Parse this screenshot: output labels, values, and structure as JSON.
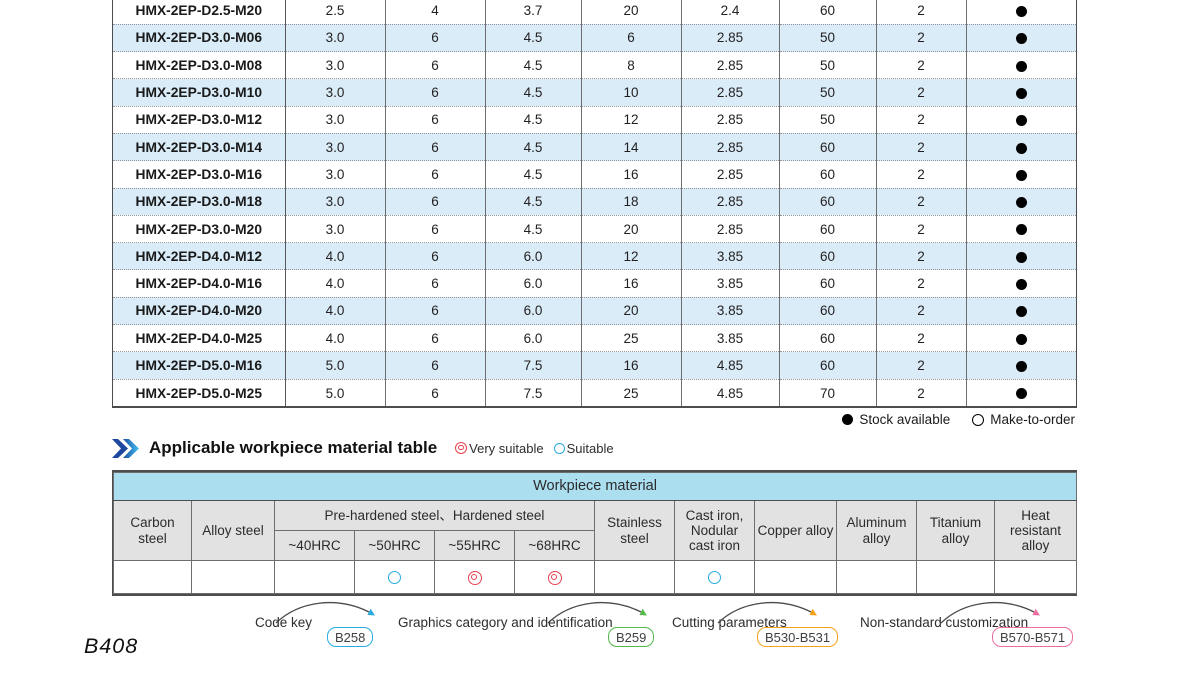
{
  "page": {
    "page_number": "B408"
  },
  "spec_table": {
    "rows": [
      {
        "model": "HMX-2EP-D2.5-M20",
        "values": [
          "2.5",
          "4",
          "3.7",
          "20",
          "2.4",
          "60",
          "2"
        ],
        "stock": "available"
      },
      {
        "model": "HMX-2EP-D3.0-M06",
        "values": [
          "3.0",
          "6",
          "4.5",
          "6",
          "2.85",
          "50",
          "2"
        ],
        "stock": "available"
      },
      {
        "model": "HMX-2EP-D3.0-M08",
        "values": [
          "3.0",
          "6",
          "4.5",
          "8",
          "2.85",
          "50",
          "2"
        ],
        "stock": "available"
      },
      {
        "model": "HMX-2EP-D3.0-M10",
        "values": [
          "3.0",
          "6",
          "4.5",
          "10",
          "2.85",
          "50",
          "2"
        ],
        "stock": "available"
      },
      {
        "model": "HMX-2EP-D3.0-M12",
        "values": [
          "3.0",
          "6",
          "4.5",
          "12",
          "2.85",
          "50",
          "2"
        ],
        "stock": "available"
      },
      {
        "model": "HMX-2EP-D3.0-M14",
        "values": [
          "3.0",
          "6",
          "4.5",
          "14",
          "2.85",
          "60",
          "2"
        ],
        "stock": "available"
      },
      {
        "model": "HMX-2EP-D3.0-M16",
        "values": [
          "3.0",
          "6",
          "4.5",
          "16",
          "2.85",
          "60",
          "2"
        ],
        "stock": "available"
      },
      {
        "model": "HMX-2EP-D3.0-M18",
        "values": [
          "3.0",
          "6",
          "4.5",
          "18",
          "2.85",
          "60",
          "2"
        ],
        "stock": "available"
      },
      {
        "model": "HMX-2EP-D3.0-M20",
        "values": [
          "3.0",
          "6",
          "4.5",
          "20",
          "2.85",
          "60",
          "2"
        ],
        "stock": "available"
      },
      {
        "model": "HMX-2EP-D4.0-M12",
        "values": [
          "4.0",
          "6",
          "6.0",
          "12",
          "3.85",
          "60",
          "2"
        ],
        "stock": "available"
      },
      {
        "model": "HMX-2EP-D4.0-M16",
        "values": [
          "4.0",
          "6",
          "6.0",
          "16",
          "3.85",
          "60",
          "2"
        ],
        "stock": "available"
      },
      {
        "model": "HMX-2EP-D4.0-M20",
        "values": [
          "4.0",
          "6",
          "6.0",
          "20",
          "3.85",
          "60",
          "2"
        ],
        "stock": "available"
      },
      {
        "model": "HMX-2EP-D4.0-M25",
        "values": [
          "4.0",
          "6",
          "6.0",
          "25",
          "3.85",
          "60",
          "2"
        ],
        "stock": "available"
      },
      {
        "model": "HMX-2EP-D5.0-M16",
        "values": [
          "5.0",
          "6",
          "7.5",
          "16",
          "4.85",
          "60",
          "2"
        ],
        "stock": "available"
      },
      {
        "model": "HMX-2EP-D5.0-M25",
        "values": [
          "5.0",
          "6",
          "7.5",
          "25",
          "4.85",
          "70",
          "2"
        ],
        "stock": "available"
      }
    ]
  },
  "stock_legend": {
    "available_label": "Stock available",
    "make_to_order_label": "Make-to-order"
  },
  "material_section": {
    "title": "Applicable workpiece material table",
    "very_suitable_label": "Very suitable",
    "suitable_label": "Suitable",
    "very_suitable_color": "#e8404f",
    "suitable_color": "#29abe2"
  },
  "material_table": {
    "header": "Workpiece material",
    "col_carbon": "Carbon steel",
    "col_alloy": "Alloy steel",
    "group_prehardened": "Pre-hardened steel、Hardened steel",
    "sub_cols": [
      "~40HRC",
      "~50HRC",
      "~55HRC",
      "~68HRC"
    ],
    "col_stainless": "Stainless steel",
    "col_cast_iron": "Cast iron, Nodular cast iron",
    "col_copper": "Copper alloy",
    "col_aluminum": "Aluminum alloy",
    "col_titanium": "Titanium alloy",
    "col_heat": "Heat resistant alloy",
    "marks": [
      "",
      "",
      "",
      "suitable",
      "very",
      "very",
      "",
      "suitable",
      "",
      "",
      "",
      ""
    ]
  },
  "references": [
    {
      "label": "Code key",
      "badge": "B258",
      "color": "#29abe2"
    },
    {
      "label": "Graphics category and identification",
      "badge": "B259",
      "color": "#54b948"
    },
    {
      "label": "Cutting parameters",
      "badge": "B530-B531",
      "color": "#f7a11a"
    },
    {
      "label": "Non-standard customization",
      "badge": "B570-B571",
      "color": "#ec6ea0"
    }
  ]
}
